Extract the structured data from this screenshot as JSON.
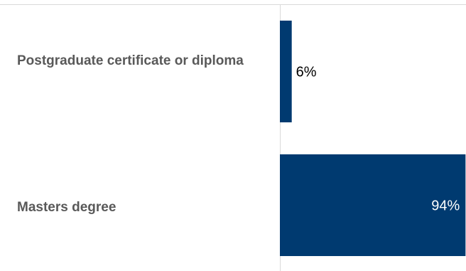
{
  "chart_data": {
    "type": "bar",
    "orientation": "horizontal",
    "categories": [
      "Postgraduate certificate or diploma",
      "Masters degree"
    ],
    "values": [
      6,
      94
    ],
    "value_labels": [
      "6%",
      "94%"
    ],
    "xlim": [
      0,
      100
    ],
    "title": "",
    "xlabel": "",
    "ylabel": "",
    "grid": false,
    "legend": "none",
    "bar_color": "#003a70",
    "label_color_outside": "#000000",
    "label_color_inside": "#ffffff",
    "category_label_color": "#595959",
    "axis_color": "#d9d9d9"
  }
}
